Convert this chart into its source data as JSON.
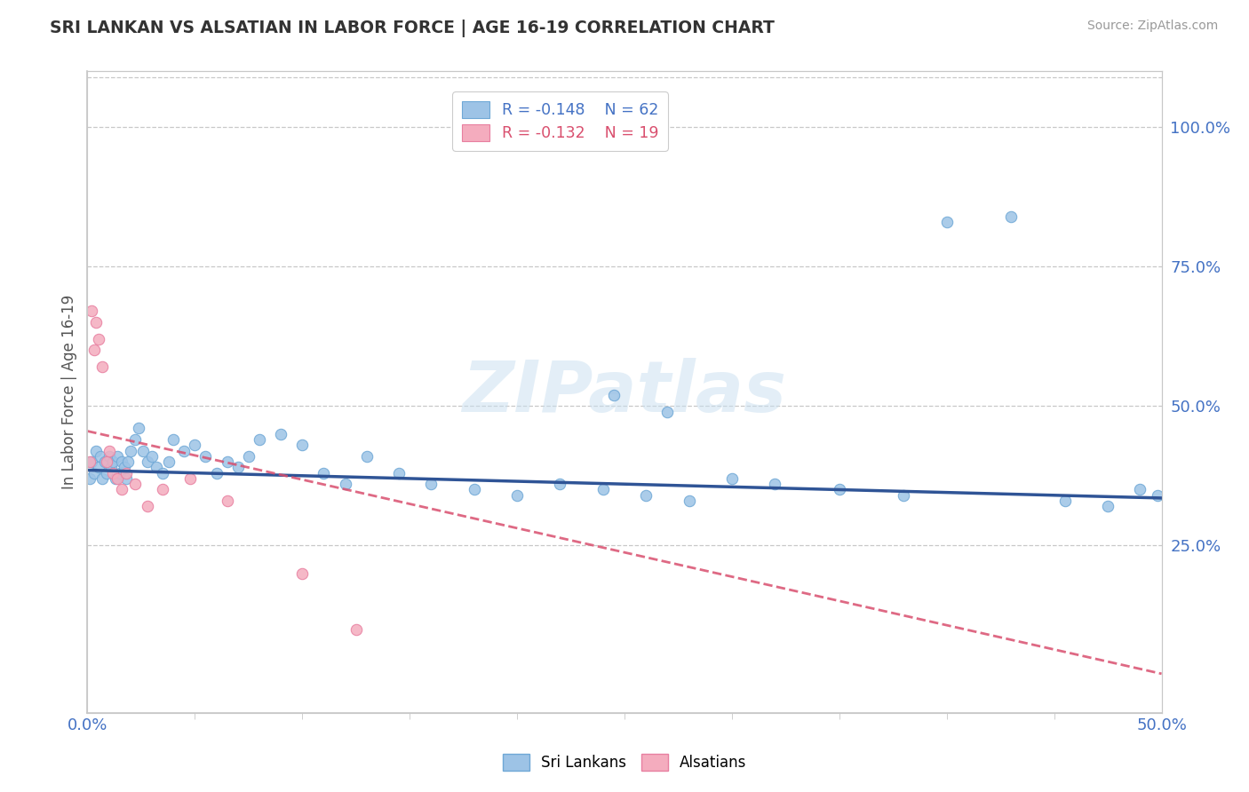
{
  "title": "SRI LANKAN VS ALSATIAN IN LABOR FORCE | AGE 16-19 CORRELATION CHART",
  "source_text": "Source: ZipAtlas.com",
  "ylabel": "In Labor Force | Age 16-19",
  "xlim": [
    0.0,
    0.5
  ],
  "ylim": [
    -0.05,
    1.1
  ],
  "right_yticks": [
    0.25,
    0.5,
    0.75,
    1.0
  ],
  "right_yticklabels": [
    "25.0%",
    "50.0%",
    "75.0%",
    "100.0%"
  ],
  "watermark_text": "ZIPatlas",
  "sri_lankan_color": "#9dc3e6",
  "sri_lankan_edge": "#6fa8d6",
  "alsatian_color": "#f4acbe",
  "alsatian_edge": "#e87fa0",
  "sri_lankan_line_color": "#2f5496",
  "alsatian_line_color": "#d94f6e",
  "sri_lankan_line_start": 0.385,
  "sri_lankan_line_end": 0.335,
  "alsatian_line_start": 0.455,
  "alsatian_line_end": 0.02,
  "background_color": "#ffffff",
  "grid_color": "#c8c8c8",
  "sri_lankans_x": [
    0.001,
    0.002,
    0.003,
    0.004,
    0.005,
    0.006,
    0.007,
    0.008,
    0.009,
    0.01,
    0.011,
    0.012,
    0.013,
    0.014,
    0.015,
    0.016,
    0.017,
    0.018,
    0.019,
    0.02,
    0.022,
    0.024,
    0.026,
    0.028,
    0.03,
    0.032,
    0.035,
    0.038,
    0.04,
    0.045,
    0.05,
    0.055,
    0.06,
    0.065,
    0.07,
    0.075,
    0.08,
    0.09,
    0.1,
    0.11,
    0.12,
    0.13,
    0.145,
    0.16,
    0.18,
    0.2,
    0.22,
    0.24,
    0.26,
    0.28,
    0.3,
    0.32,
    0.35,
    0.38,
    0.4,
    0.43,
    0.455,
    0.475,
    0.49,
    0.498,
    0.245,
    0.27
  ],
  "sri_lankans_y": [
    0.37,
    0.4,
    0.38,
    0.42,
    0.39,
    0.41,
    0.37,
    0.4,
    0.38,
    0.41,
    0.39,
    0.4,
    0.37,
    0.41,
    0.38,
    0.4,
    0.39,
    0.37,
    0.4,
    0.42,
    0.44,
    0.46,
    0.42,
    0.4,
    0.41,
    0.39,
    0.38,
    0.4,
    0.44,
    0.42,
    0.43,
    0.41,
    0.38,
    0.4,
    0.39,
    0.41,
    0.44,
    0.45,
    0.43,
    0.38,
    0.36,
    0.41,
    0.38,
    0.36,
    0.35,
    0.34,
    0.36,
    0.35,
    0.34,
    0.33,
    0.37,
    0.36,
    0.35,
    0.34,
    0.83,
    0.84,
    0.33,
    0.32,
    0.35,
    0.34,
    0.52,
    0.49
  ],
  "alsatians_x": [
    0.001,
    0.002,
    0.003,
    0.004,
    0.005,
    0.007,
    0.009,
    0.01,
    0.012,
    0.014,
    0.016,
    0.018,
    0.022,
    0.028,
    0.035,
    0.048,
    0.065,
    0.1,
    0.125
  ],
  "alsatians_y": [
    0.4,
    0.67,
    0.6,
    0.65,
    0.62,
    0.57,
    0.4,
    0.42,
    0.38,
    0.37,
    0.35,
    0.38,
    0.36,
    0.32,
    0.35,
    0.37,
    0.33,
    0.2,
    0.1
  ]
}
